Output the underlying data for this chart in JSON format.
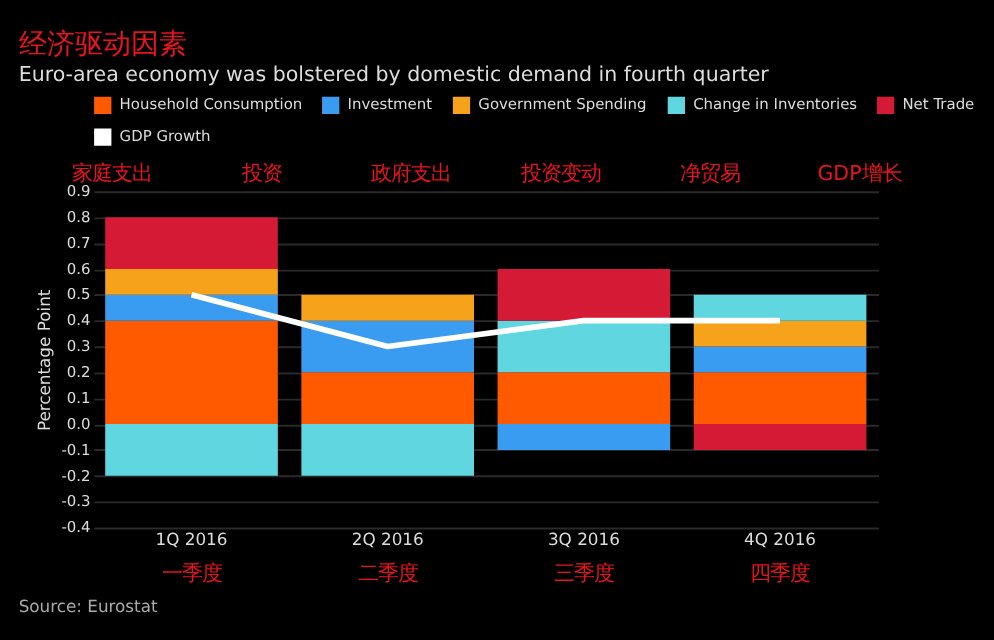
{
  "chart_data": {
    "type": "bar",
    "stacked": true,
    "title": "经济驱动因素",
    "subtitle": "Euro-area economy was bolstered by domestic demand in fourth quarter",
    "ylabel": "Percentage Point",
    "categories": [
      "1Q 2016",
      "2Q 2016",
      "3Q 2016",
      "4Q 2016"
    ],
    "series": [
      {
        "name": "Household Consumption",
        "color": "#ff5a00",
        "values": [
          0.4,
          0.2,
          0.2,
          0.2
        ]
      },
      {
        "name": "Investment",
        "color": "#3a9cf0",
        "values": [
          0.1,
          0.2,
          -0.1,
          0.1
        ]
      },
      {
        "name": "Government Spending",
        "color": "#f7a21b",
        "values": [
          0.1,
          0.1,
          0,
          0.1
        ]
      },
      {
        "name": "Change in Inventories",
        "color": "#5fd6e0",
        "values": [
          -0.2,
          -0.2,
          0.2,
          0.1
        ]
      },
      {
        "name": "Net Trade",
        "color": "#d41a35",
        "values": [
          0.2,
          0,
          0.2,
          -0.1
        ]
      },
      {
        "name": "GDP Growth",
        "color": "#ffffff",
        "type": "line",
        "values": [
          0.5,
          0.3,
          0.4,
          0.4
        ]
      }
    ],
    "ylim": [
      -0.4,
      0.9
    ],
    "yticks": [
      {
        "value": -0.4,
        "label": "-0.4"
      },
      {
        "value": -0.3,
        "label": "-0.3"
      },
      {
        "value": -0.2,
        "label": "-0.2"
      },
      {
        "value": -0.1,
        "label": "-0.1"
      },
      {
        "value": 0,
        "label": "0.0"
      },
      {
        "value": 0.1,
        "label": "0.1"
      },
      {
        "value": 0.2,
        "label": "0.2"
      },
      {
        "value": 0.3,
        "label": "0.3"
      },
      {
        "value": 0.4,
        "label": "0.4"
      },
      {
        "value": 0.5,
        "label": "0.5"
      },
      {
        "value": 0.6,
        "label": "0.6"
      },
      {
        "value": 0.7,
        "label": "0.7"
      },
      {
        "value": 0.8,
        "label": "0.8"
      },
      {
        "value": 0.9,
        "label": "0.9"
      }
    ],
    "grid": "y",
    "legend": "top",
    "marker": "none",
    "line_style": "solid",
    "annotations": [
      "家庭支出",
      "投资",
      "政府支出",
      "投资变动",
      "净贸易",
      "GDP增长",
      "一季度",
      "二季度",
      "三季度",
      "四季度",
      "Source: Eurostat"
    ]
  }
}
